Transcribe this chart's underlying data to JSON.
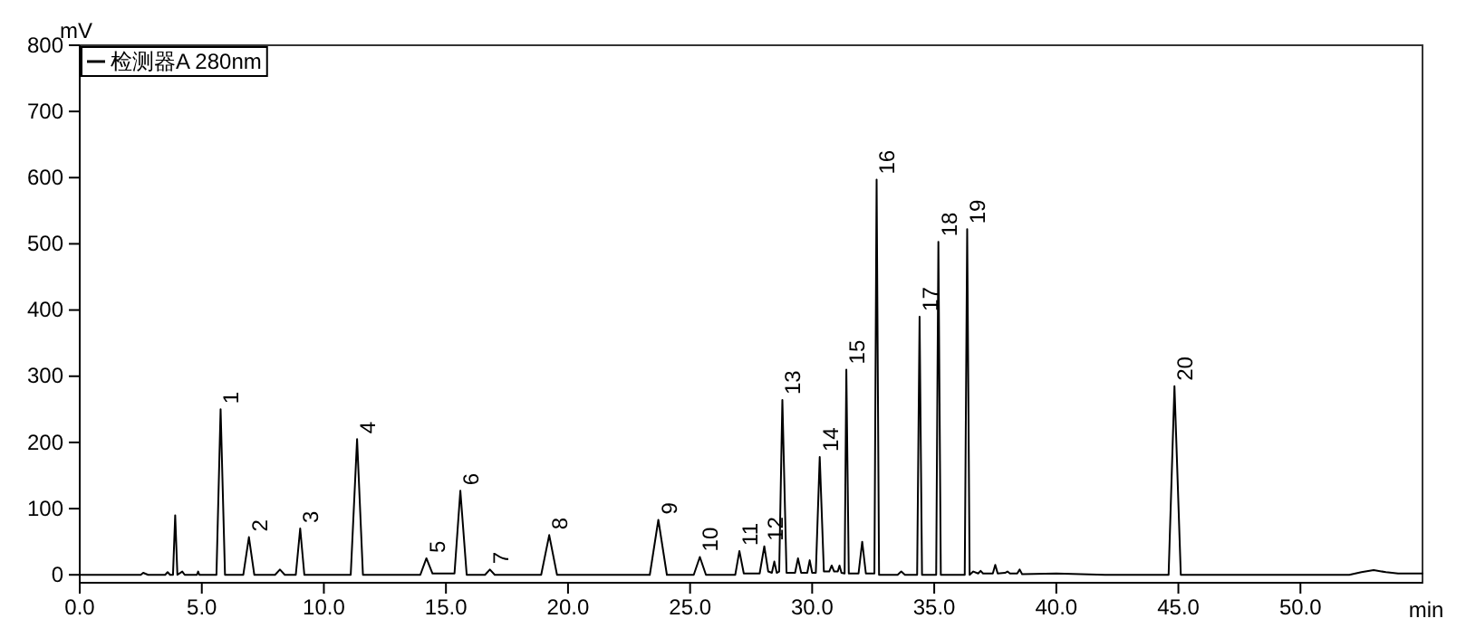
{
  "chart_data": {
    "type": "line",
    "xlabel": "min",
    "ylabel": "mV",
    "legend": "top left",
    "xlim": [
      0,
      55
    ],
    "ylim": [
      -12,
      800
    ],
    "xticks": [
      {
        "value": 0,
        "label": "0.0"
      },
      {
        "value": 5,
        "label": "5.0"
      },
      {
        "value": 10,
        "label": "10.0"
      },
      {
        "value": 15,
        "label": "15.0"
      },
      {
        "value": 20,
        "label": "20.0"
      },
      {
        "value": 25,
        "label": "25.0"
      },
      {
        "value": 30,
        "label": "30.0"
      },
      {
        "value": 35,
        "label": "35.0"
      },
      {
        "value": 40,
        "label": "40.0"
      },
      {
        "value": 45,
        "label": "45.0"
      },
      {
        "value": 50,
        "label": "50.0"
      }
    ],
    "yticks": [
      0,
      100,
      200,
      300,
      400,
      500,
      600,
      700,
      800
    ],
    "series": [
      {
        "name": "检测器A 280nm",
        "color": "#000000",
        "x": [
          0,
          2.5,
          2.6,
          2.8,
          3.5,
          3.6,
          3.7,
          3.82,
          3.91,
          4.0,
          4.2,
          4.3,
          4.8,
          4.85,
          4.9,
          5.6,
          5.77,
          5.95,
          6.7,
          6.93,
          7.15,
          8.0,
          8.2,
          8.4,
          8.85,
          9.03,
          9.2,
          11.1,
          11.36,
          11.6,
          13.95,
          14.2,
          14.45,
          15.35,
          15.59,
          15.85,
          16.6,
          16.8,
          17.0,
          18.9,
          19.23,
          19.55,
          23.35,
          23.7,
          24.05,
          25.15,
          25.4,
          25.65,
          26.85,
          27.02,
          27.2,
          27.85,
          28.04,
          28.2,
          28.35,
          28.45,
          28.55,
          28.65,
          28.78,
          28.95,
          29.3,
          29.42,
          29.55,
          29.8,
          29.9,
          30.0,
          30.15,
          30.31,
          30.48,
          30.7,
          30.8,
          30.9,
          31.05,
          31.12,
          31.2,
          31.33,
          31.4,
          31.5,
          31.9,
          32.05,
          32.2,
          32.55,
          32.64,
          32.74,
          33.5,
          33.65,
          33.8,
          34.3,
          34.4,
          34.5,
          35.08,
          35.17,
          35.27,
          36.25,
          36.35,
          36.45,
          36.6,
          36.8,
          36.9,
          37.0,
          37.4,
          37.5,
          37.6,
          37.9,
          38.0,
          38.1,
          38.4,
          38.5,
          38.6,
          40,
          41,
          42,
          44.6,
          44.84,
          45.1,
          52,
          52.5,
          53,
          53.5,
          54,
          55
        ],
        "values": [
          0,
          0,
          3,
          0,
          0,
          4,
          0,
          0,
          90,
          0,
          5,
          0,
          0,
          5,
          0,
          0,
          250,
          0,
          0,
          57,
          0,
          0,
          8,
          0,
          0,
          70,
          0,
          0,
          205,
          0,
          0,
          25,
          2,
          2,
          127,
          0,
          0,
          8,
          0,
          0,
          60,
          0,
          0,
          83,
          0,
          0,
          27,
          0,
          0,
          36,
          2,
          2,
          43,
          5,
          3,
          20,
          3,
          5,
          264,
          3,
          3,
          25,
          3,
          3,
          22,
          3,
          3,
          178,
          5,
          5,
          14,
          5,
          5,
          14,
          3,
          2,
          310,
          2,
          2,
          50,
          2,
          2,
          597,
          0,
          0,
          5,
          0,
          0,
          390,
          0,
          0,
          503,
          0,
          0,
          522,
          0,
          5,
          2,
          6,
          2,
          2,
          15,
          2,
          3,
          5,
          2,
          2,
          8,
          1,
          2,
          1,
          0,
          0,
          285,
          0,
          0,
          4,
          7,
          4,
          2,
          2
        ]
      }
    ],
    "annotations": [
      {
        "text": "1",
        "x": 5.77,
        "y": 250
      },
      {
        "text": "2",
        "x": 6.93,
        "y": 57
      },
      {
        "text": "3",
        "x": 9.03,
        "y": 70
      },
      {
        "text": "4",
        "x": 11.36,
        "y": 205
      },
      {
        "text": "5",
        "x": 14.2,
        "y": 25
      },
      {
        "text": "6",
        "x": 15.59,
        "y": 127
      },
      {
        "text": "7",
        "x": 16.8,
        "y": 8
      },
      {
        "text": "8",
        "x": 19.23,
        "y": 60
      },
      {
        "text": "9",
        "x": 23.7,
        "y": 83
      },
      {
        "text": "10",
        "x": 25.4,
        "y": 27
      },
      {
        "text": "11",
        "x": 27.02,
        "y": 36
      },
      {
        "text": "12",
        "x": 28.04,
        "y": 43
      },
      {
        "text": "13",
        "x": 28.78,
        "y": 264
      },
      {
        "text": "14",
        "x": 30.31,
        "y": 178
      },
      {
        "text": "15",
        "x": 31.4,
        "y": 310
      },
      {
        "text": "16",
        "x": 32.64,
        "y": 597
      },
      {
        "text": "17",
        "x": 34.4,
        "y": 390
      },
      {
        "text": "18",
        "x": 35.17,
        "y": 503
      },
      {
        "text": "19",
        "x": 36.35,
        "y": 522
      },
      {
        "text": "20",
        "x": 44.84,
        "y": 285
      }
    ]
  }
}
